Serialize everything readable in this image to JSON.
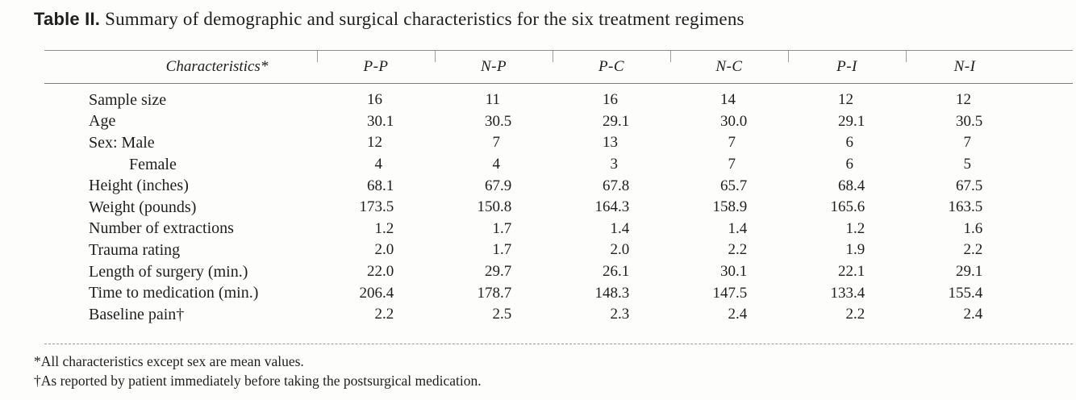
{
  "title": {
    "label": "Table II.",
    "text": "Summary of demographic and surgical characteristics for the six treatment regimens"
  },
  "table": {
    "header": {
      "characteristics": "Characteristics*",
      "columns": [
        "P-P",
        "N-P",
        "P-C",
        "N-C",
        "P-I",
        "N-I"
      ]
    },
    "rows": [
      {
        "label": "Sample size",
        "indent": false,
        "values": [
          "16",
          "11",
          "16",
          "14",
          "12",
          "12"
        ]
      },
      {
        "label": "Age",
        "indent": false,
        "values": [
          "30.1",
          "30.5",
          "29.1",
          "30.0",
          "29.1",
          "30.5"
        ]
      },
      {
        "label": "Sex: Male",
        "indent": false,
        "values": [
          "12",
          "7",
          "13",
          "7",
          "6",
          "7"
        ]
      },
      {
        "label": "Female",
        "indent": true,
        "values": [
          "4",
          "4",
          "3",
          "7",
          "6",
          "5"
        ]
      },
      {
        "label": "Height (inches)",
        "indent": false,
        "values": [
          "68.1",
          "67.9",
          "67.8",
          "65.7",
          "68.4",
          "67.5"
        ]
      },
      {
        "label": "Weight (pounds)",
        "indent": false,
        "values": [
          "173.5",
          "150.8",
          "164.3",
          "158.9",
          "165.6",
          "163.5"
        ]
      },
      {
        "label": "Number of extractions",
        "indent": false,
        "values": [
          "1.2",
          "1.7",
          "1.4",
          "1.4",
          "1.2",
          "1.6"
        ]
      },
      {
        "label": "Trauma rating",
        "indent": false,
        "values": [
          "2.0",
          "1.7",
          "2.0",
          "2.2",
          "1.9",
          "2.2"
        ]
      },
      {
        "label": "Length of surgery (min.)",
        "indent": false,
        "values": [
          "22.0",
          "29.7",
          "26.1",
          "30.1",
          "22.1",
          "29.1"
        ]
      },
      {
        "label": "Time to medication (min.)",
        "indent": false,
        "values": [
          "206.4",
          "178.7",
          "148.3",
          "147.5",
          "133.4",
          "155.4"
        ]
      },
      {
        "label": "Baseline pain†",
        "indent": false,
        "values": [
          "2.2",
          "2.5",
          "2.3",
          "2.4",
          "2.2",
          "2.4"
        ]
      }
    ]
  },
  "footnotes": [
    "*All characteristics except sex are mean values.",
    "†As reported by patient immediately before taking the postsurgical medication."
  ],
  "colors": {
    "text": "#1e1e1e",
    "rule": "#8f8f8f",
    "background": "#fdfdfc"
  }
}
